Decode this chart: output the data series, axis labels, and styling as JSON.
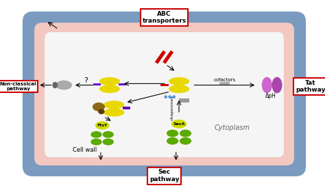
{
  "fig_width": 4.74,
  "fig_height": 2.78,
  "dpi": 100,
  "outer_cell_color": "#7a9bbf",
  "inner_cell_color": "#f2c8c0",
  "cytoplasm_color": "#f5f5f5",
  "label_abc": "ABC\ntransporters",
  "label_sec": "Sec\npathway",
  "label_nonclassical": "Non-classical\npathway",
  "label_tat": "Tat\npathway",
  "label_cytoplasm": "Cytoplasm",
  "label_cellwall": "Cell wall",
  "label_cofactors": "cofactors",
  "label_chaperones": "chaperones",
  "label_deltapH": "ΔpH",
  "label_FtsY": "FtsY",
  "label_SecA": "SecA",
  "label_question": "?"
}
